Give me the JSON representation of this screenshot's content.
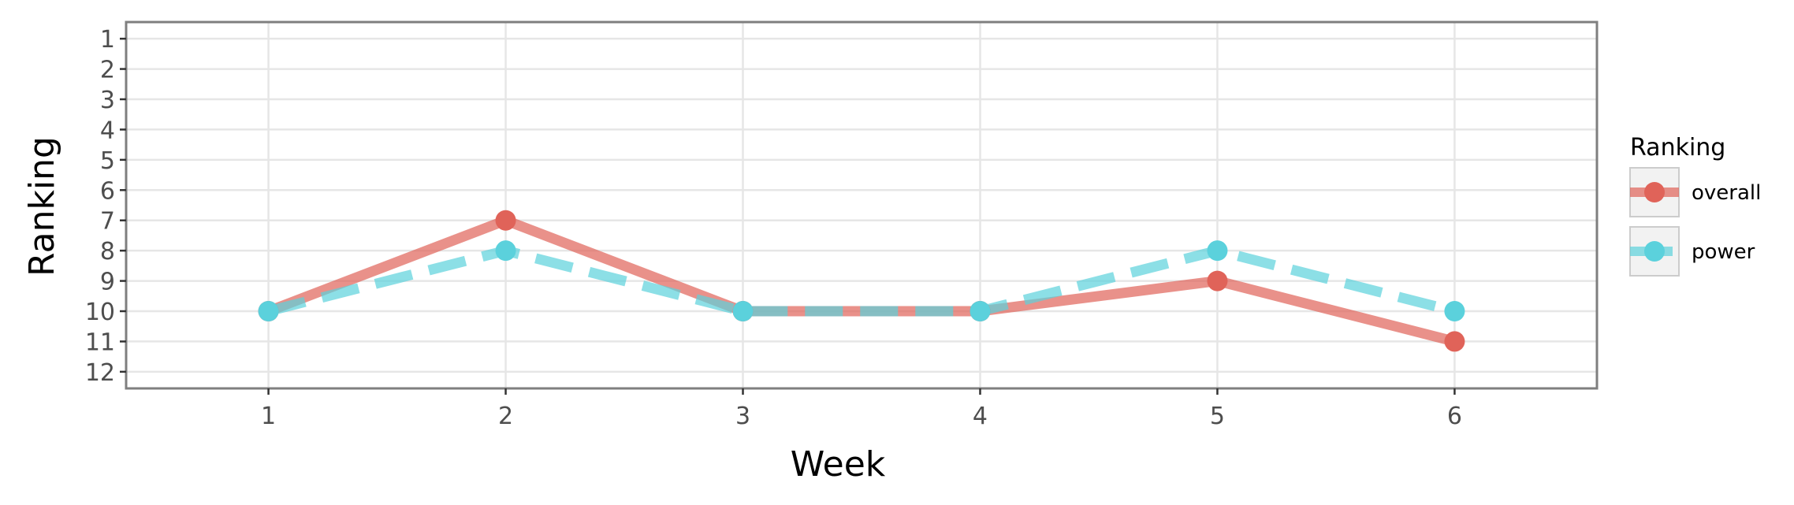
{
  "chart_data": {
    "type": "line",
    "xlabel": "Week",
    "ylabel": "Ranking",
    "x": [
      1,
      2,
      3,
      4,
      5,
      6
    ],
    "x_ticks": [
      "1",
      "2",
      "3",
      "4",
      "5",
      "6"
    ],
    "xlim": [
      0.4,
      6.6
    ],
    "y_ticks": [
      "1",
      "2",
      "3",
      "4",
      "5",
      "6",
      "7",
      "8",
      "9",
      "10",
      "11",
      "12"
    ],
    "ylim": [
      0.45,
      12.55
    ],
    "y_reversed": true,
    "grid": true,
    "legend": {
      "title": "Ranking",
      "placement": "right"
    },
    "series": [
      {
        "name": "overall",
        "values": [
          10,
          7,
          10,
          10,
          9,
          11
        ],
        "color": "#e06359",
        "linestyle": "solid"
      },
      {
        "name": "power",
        "values": [
          10,
          8,
          10,
          10,
          8,
          10
        ],
        "color": "#5bd1dc",
        "linestyle": "dashed"
      }
    ]
  }
}
